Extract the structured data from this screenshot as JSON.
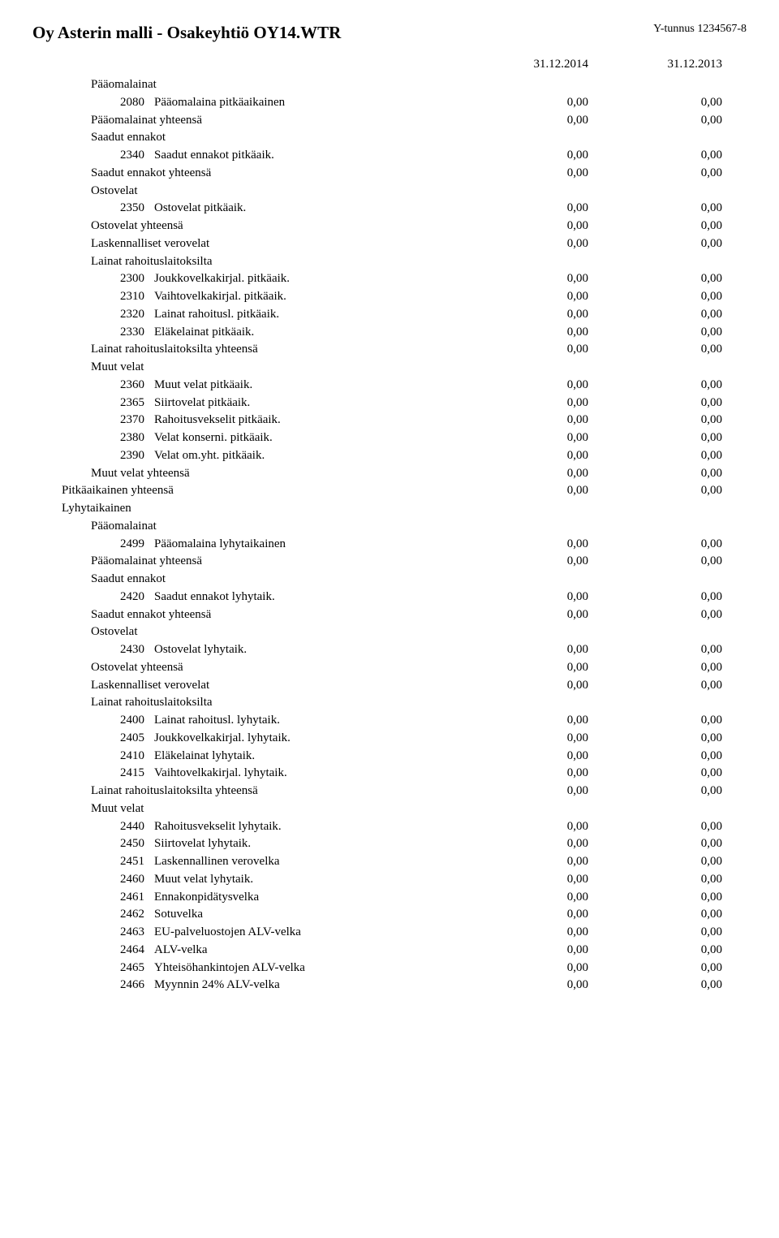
{
  "header": {
    "company": "Oy Asterin malli - Osakeyhtiö OY14.WTR",
    "ytunnus": "Y-tunnus 1234567-8",
    "date1": "31.12.2014",
    "date2": "31.12.2013"
  },
  "rows": [
    {
      "type": "group",
      "indent": 1,
      "label": "Pääomalainat"
    },
    {
      "type": "item",
      "code": "2080",
      "label": "Pääomalaina pitkäaikainen",
      "v1": "0,00",
      "v2": "0,00"
    },
    {
      "type": "sum",
      "indent": 1,
      "label": "Pääomalainat yhteensä",
      "v1": "0,00",
      "v2": "0,00"
    },
    {
      "type": "group",
      "indent": 1,
      "label": "Saadut ennakot"
    },
    {
      "type": "item",
      "code": "2340",
      "label": "Saadut ennakot pitkäaik.",
      "v1": "0,00",
      "v2": "0,00"
    },
    {
      "type": "sum",
      "indent": 1,
      "label": "Saadut ennakot yhteensä",
      "v1": "0,00",
      "v2": "0,00"
    },
    {
      "type": "group",
      "indent": 1,
      "label": "Ostovelat"
    },
    {
      "type": "item",
      "code": "2350",
      "label": "Ostovelat pitkäaik.",
      "v1": "0,00",
      "v2": "0,00"
    },
    {
      "type": "sum",
      "indent": 1,
      "label": "Ostovelat yhteensä",
      "v1": "0,00",
      "v2": "0,00"
    },
    {
      "type": "sum",
      "indent": 1,
      "label": "Laskennalliset verovelat",
      "v1": "0,00",
      "v2": "0,00"
    },
    {
      "type": "group",
      "indent": 1,
      "label": "Lainat rahoituslaitoksilta"
    },
    {
      "type": "item",
      "code": "2300",
      "label": "Joukkovelkakirjal. pitkäaik.",
      "v1": "0,00",
      "v2": "0,00"
    },
    {
      "type": "item",
      "code": "2310",
      "label": "Vaihtovelkakirjal. pitkäaik.",
      "v1": "0,00",
      "v2": "0,00"
    },
    {
      "type": "item",
      "code": "2320",
      "label": "Lainat rahoitusl. pitkäaik.",
      "v1": "0,00",
      "v2": "0,00"
    },
    {
      "type": "item",
      "code": "2330",
      "label": "Eläkelainat pitkäaik.",
      "v1": "0,00",
      "v2": "0,00"
    },
    {
      "type": "sum",
      "indent": 1,
      "label": "Lainat rahoituslaitoksilta yhteensä",
      "v1": "0,00",
      "v2": "0,00"
    },
    {
      "type": "group",
      "indent": 1,
      "label": "Muut velat"
    },
    {
      "type": "item",
      "code": "2360",
      "label": "Muut velat pitkäaik.",
      "v1": "0,00",
      "v2": "0,00"
    },
    {
      "type": "item",
      "code": "2365",
      "label": "Siirtovelat pitkäaik.",
      "v1": "0,00",
      "v2": "0,00"
    },
    {
      "type": "item",
      "code": "2370",
      "label": "Rahoitusvekselit pitkäaik.",
      "v1": "0,00",
      "v2": "0,00"
    },
    {
      "type": "item",
      "code": "2380",
      "label": "Velat konserni. pitkäaik.",
      "v1": "0,00",
      "v2": "0,00"
    },
    {
      "type": "item",
      "code": "2390",
      "label": "Velat om.yht. pitkäaik.",
      "v1": "0,00",
      "v2": "0,00"
    },
    {
      "type": "sum",
      "indent": 1,
      "label": "Muut velat yhteensä",
      "v1": "0,00",
      "v2": "0,00"
    },
    {
      "type": "sum",
      "indent": 0,
      "label": "Pitkäaikainen yhteensä",
      "v1": "0,00",
      "v2": "0,00"
    },
    {
      "type": "group",
      "indent": 0,
      "label": "Lyhytaikainen"
    },
    {
      "type": "group",
      "indent": 1,
      "label": "Pääomalainat"
    },
    {
      "type": "item",
      "code": "2499",
      "label": "Pääomalaina lyhytaikainen",
      "v1": "0,00",
      "v2": "0,00"
    },
    {
      "type": "sum",
      "indent": 1,
      "label": "Pääomalainat yhteensä",
      "v1": "0,00",
      "v2": "0,00"
    },
    {
      "type": "group",
      "indent": 1,
      "label": "Saadut ennakot"
    },
    {
      "type": "item",
      "code": "2420",
      "label": "Saadut ennakot lyhytaik.",
      "v1": "0,00",
      "v2": "0,00"
    },
    {
      "type": "sum",
      "indent": 1,
      "label": "Saadut ennakot yhteensä",
      "v1": "0,00",
      "v2": "0,00"
    },
    {
      "type": "group",
      "indent": 1,
      "label": "Ostovelat"
    },
    {
      "type": "item",
      "code": "2430",
      "label": "Ostovelat lyhytaik.",
      "v1": "0,00",
      "v2": "0,00"
    },
    {
      "type": "sum",
      "indent": 1,
      "label": "Ostovelat yhteensä",
      "v1": "0,00",
      "v2": "0,00"
    },
    {
      "type": "sum",
      "indent": 1,
      "label": "Laskennalliset verovelat",
      "v1": "0,00",
      "v2": "0,00"
    },
    {
      "type": "group",
      "indent": 1,
      "label": "Lainat rahoituslaitoksilta"
    },
    {
      "type": "item",
      "code": "2400",
      "label": "Lainat rahoitusl. lyhytaik.",
      "v1": "0,00",
      "v2": "0,00"
    },
    {
      "type": "item",
      "code": "2405",
      "label": "Joukkovelkakirjal. lyhytaik.",
      "v1": "0,00",
      "v2": "0,00"
    },
    {
      "type": "item",
      "code": "2410",
      "label": "Eläkelainat lyhytaik.",
      "v1": "0,00",
      "v2": "0,00"
    },
    {
      "type": "item",
      "code": "2415",
      "label": "Vaihtovelkakirjal. lyhytaik.",
      "v1": "0,00",
      "v2": "0,00"
    },
    {
      "type": "sum",
      "indent": 1,
      "label": "Lainat rahoituslaitoksilta yhteensä",
      "v1": "0,00",
      "v2": "0,00"
    },
    {
      "type": "group",
      "indent": 1,
      "label": "Muut velat"
    },
    {
      "type": "item",
      "code": "2440",
      "label": "Rahoitusvekselit lyhytaik.",
      "v1": "0,00",
      "v2": "0,00"
    },
    {
      "type": "item",
      "code": "2450",
      "label": "Siirtovelat lyhytaik.",
      "v1": "0,00",
      "v2": "0,00"
    },
    {
      "type": "item",
      "code": "2451",
      "label": "Laskennallinen verovelka",
      "v1": "0,00",
      "v2": "0,00"
    },
    {
      "type": "item",
      "code": "2460",
      "label": "Muut velat lyhytaik.",
      "v1": "0,00",
      "v2": "0,00"
    },
    {
      "type": "item",
      "code": "2461",
      "label": "Ennakonpidätysvelka",
      "v1": "0,00",
      "v2": "0,00"
    },
    {
      "type": "item",
      "code": "2462",
      "label": "Sotuvelka",
      "v1": "0,00",
      "v2": "0,00"
    },
    {
      "type": "item",
      "code": "2463",
      "label": "EU-palveluostojen ALV-velka",
      "v1": "0,00",
      "v2": "0,00"
    },
    {
      "type": "item",
      "code": "2464",
      "label": "ALV-velka",
      "v1": "0,00",
      "v2": "0,00"
    },
    {
      "type": "item",
      "code": "2465",
      "label": "Yhteisöhankintojen ALV-velka",
      "v1": "0,00",
      "v2": "0,00"
    },
    {
      "type": "item",
      "code": "2466",
      "label": "Myynnin 24% ALV-velka",
      "v1": "0,00",
      "v2": "0,00"
    }
  ]
}
